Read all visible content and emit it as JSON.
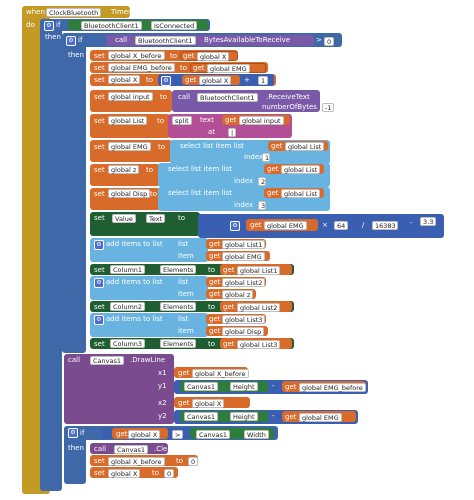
{
  "colors": {
    "event": "#c29a24",
    "control": "#3f68a8",
    "component": "#2f7d3a",
    "bluetooth": "#7a5aa8",
    "setter": "#d86a2a",
    "list": "#69b3e0",
    "math": "#3a5fb0",
    "canvas": "#7b4b8f",
    "deep": "#1f5e30"
  },
  "event": {
    "when": "when",
    "component": "ClockBluetooth",
    "event_name": "Timer",
    "do": "do"
  },
  "if1": {
    "if": "if",
    "component": "BluetoothClient1",
    "prop": "IsConnected",
    "then": "then"
  },
  "if2": {
    "if": "if",
    "call": "call",
    "component": "BluetoothClient1",
    "method": "BytesAvailableToReceive",
    "op": ">",
    "value": "0",
    "then": "then"
  },
  "sets": {
    "set": "set",
    "to": "to",
    "get": "get",
    "x_before": "global X_before",
    "x": "global X",
    "emg_before": "global EMG_before",
    "emg": "global EMG",
    "plus": "+",
    "one": "1",
    "input": "global input",
    "list": "global List",
    "z": "global z",
    "disp": "global Disp"
  },
  "receive": {
    "call": "call",
    "component": "BluetoothClient1",
    "method": ".ReceiveText",
    "param": "numberOfBytes",
    "value": "-1"
  },
  "split": {
    "split": "split",
    "text": "text",
    "at": "at",
    "sep": "|"
  },
  "select": {
    "label": "select list item  list",
    "index": "index",
    "i1": "1",
    "i2": "2",
    "i3": "3"
  },
  "value_set": {
    "set": "set",
    "comp": "Value",
    "prop": "Text",
    "to": "to",
    "mul": "×",
    "n64": "64",
    "div": "/",
    "n16383": "16383",
    "minus": "-",
    "n33": "3.3"
  },
  "add": {
    "label": "add items to list",
    "list": "list",
    "item": "item"
  },
  "lists": {
    "l1": "global List1",
    "l2": "global List2",
    "l3": "global List3"
  },
  "columns": {
    "set": "set",
    "c1": "Column1",
    "c2": "Column2",
    "c3": "Column3",
    "prop": "Elements",
    "to": "to"
  },
  "draw": {
    "call": "call",
    "comp": "Canvas1",
    "method": ".DrawLine",
    "x1": "x1",
    "y1": "y1",
    "x2": "x2",
    "y2": "y2",
    "canvas": "Canvas1",
    "height": "Height",
    "minus": "-"
  },
  "if3": {
    "if": "if",
    "op": ">",
    "canvas": "Canvas1",
    "width": "Width",
    "then": "then",
    "call": "call",
    "clear": ".Clear",
    "zero": "0"
  }
}
